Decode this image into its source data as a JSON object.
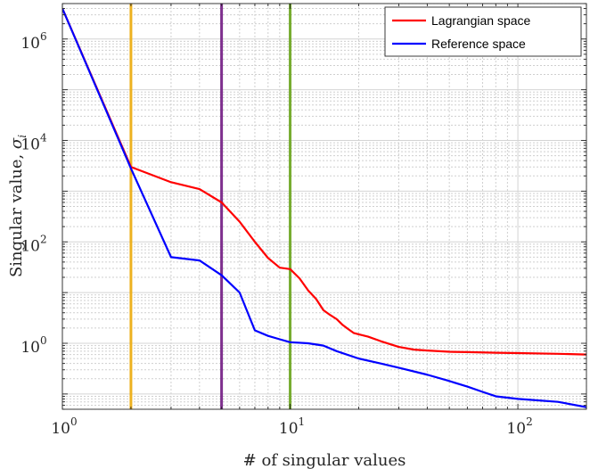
{
  "chart_data": {
    "type": "line",
    "xscale": "log",
    "yscale": "log",
    "xlim": [
      1,
      200
    ],
    "ylim": [
      0.05,
      5000000
    ],
    "grid": true,
    "minor_grid": true,
    "legend_position": "top-right",
    "xlabel": "# of singular values",
    "ylabel": {
      "main": "Singular  value, ",
      "symbol": "σ",
      "subscript": "i"
    },
    "x_ticks": [
      {
        "value": 1,
        "base": "10",
        "exp": "0"
      },
      {
        "value": 10,
        "base": "10",
        "exp": "1"
      },
      {
        "value": 100,
        "base": "10",
        "exp": "2"
      }
    ],
    "y_ticks": [
      {
        "value": 1,
        "base": "10",
        "exp": "0"
      },
      {
        "value": 100,
        "base": "10",
        "exp": "2"
      },
      {
        "value": 10000,
        "base": "10",
        "exp": "4"
      },
      {
        "value": 1000000,
        "base": "10",
        "exp": "6"
      }
    ],
    "vertical_lines": [
      {
        "x": 2,
        "color": "#EDB120"
      },
      {
        "x": 5,
        "color": "#7E2F8E"
      },
      {
        "x": 10,
        "color": "#77AC30"
      }
    ],
    "series": [
      {
        "name": "Lagrangian space",
        "color": "#FF0000",
        "points": [
          [
            1,
            4000000
          ],
          [
            2,
            3000
          ],
          [
            3,
            1500
          ],
          [
            4,
            1100
          ],
          [
            5,
            600
          ],
          [
            6,
            250
          ],
          [
            7,
            100
          ],
          [
            8,
            48
          ],
          [
            9,
            31
          ],
          [
            10,
            29
          ],
          [
            11,
            19
          ],
          [
            12,
            11
          ],
          [
            13,
            7.5
          ],
          [
            14,
            4.5
          ],
          [
            15,
            3.6
          ],
          [
            16,
            3.0
          ],
          [
            17,
            2.3
          ],
          [
            18,
            1.9
          ],
          [
            19,
            1.6
          ],
          [
            20,
            1.5
          ],
          [
            22,
            1.35
          ],
          [
            25,
            1.1
          ],
          [
            30,
            0.85
          ],
          [
            35,
            0.75
          ],
          [
            40,
            0.72
          ],
          [
            50,
            0.68
          ],
          [
            60,
            0.67
          ],
          [
            80,
            0.65
          ],
          [
            100,
            0.64
          ],
          [
            150,
            0.62
          ],
          [
            200,
            0.6
          ]
        ]
      },
      {
        "name": "Reference space",
        "color": "#0000FF",
        "points": [
          [
            1,
            4000000
          ],
          [
            2,
            2800
          ],
          [
            3,
            50
          ],
          [
            4,
            43
          ],
          [
            5,
            22
          ],
          [
            6,
            10
          ],
          [
            7,
            1.8
          ],
          [
            8,
            1.4
          ],
          [
            9,
            1.2
          ],
          [
            10,
            1.05
          ],
          [
            12,
            1.0
          ],
          [
            14,
            0.9
          ],
          [
            16,
            0.7
          ],
          [
            20,
            0.5
          ],
          [
            25,
            0.4
          ],
          [
            30,
            0.33
          ],
          [
            40,
            0.24
          ],
          [
            50,
            0.18
          ],
          [
            60,
            0.14
          ],
          [
            70,
            0.11
          ],
          [
            80,
            0.09
          ],
          [
            100,
            0.08
          ],
          [
            150,
            0.07
          ],
          [
            200,
            0.055
          ]
        ]
      }
    ]
  }
}
